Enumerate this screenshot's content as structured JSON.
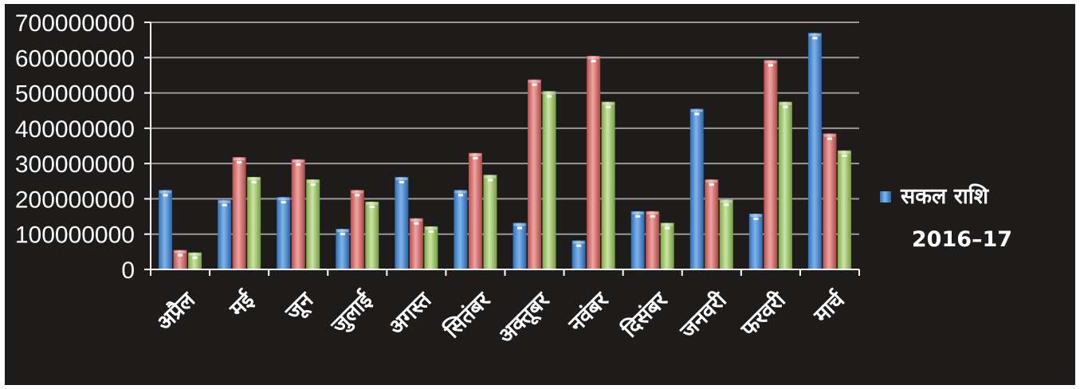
{
  "colors": {
    "background": "#1e1b1b",
    "axis": "#ffffff",
    "grid": "#9a9a9a",
    "series": [
      "#4f8fd6",
      "#e07a78",
      "#a8cd72"
    ]
  },
  "chart_data": {
    "type": "bar",
    "title": "",
    "xlabel": "",
    "ylabel": "",
    "ylim": [
      0,
      700000000
    ],
    "yticks": [
      0,
      100000000,
      200000000,
      300000000,
      400000000,
      500000000,
      600000000,
      700000000
    ],
    "ytick_labels": [
      "0",
      "100000000",
      "200000000",
      "300000000",
      "400000000",
      "500000000",
      "600000000",
      "700000000"
    ],
    "grid": true,
    "legend_position": "right",
    "categories": [
      "अप्रैल",
      "मई",
      "जून",
      "जुलाई",
      "अगस्त",
      "सितंबर",
      "अक्तूबर",
      "नवंबर",
      "दिसंबर",
      "जनवरी",
      "फरवरी",
      "मार्च"
    ],
    "series": [
      {
        "name": "सकल राशि",
        "values": [
          225000000,
          197000000,
          205000000,
          115000000,
          262000000,
          225000000,
          132000000,
          82000000,
          165000000,
          455000000,
          158000000,
          670000000
        ]
      },
      {
        "name": "",
        "values": [
          55000000,
          318000000,
          312000000,
          225000000,
          145000000,
          330000000,
          538000000,
          605000000,
          165000000,
          255000000,
          593000000,
          385000000
        ]
      },
      {
        "name": "",
        "values": [
          48000000,
          262000000,
          255000000,
          192000000,
          122000000,
          268000000,
          505000000,
          475000000,
          132000000,
          198000000,
          475000000,
          337000000
        ]
      }
    ],
    "legend": {
      "label": "सकल राशि",
      "sublabel": "2016–17"
    }
  }
}
